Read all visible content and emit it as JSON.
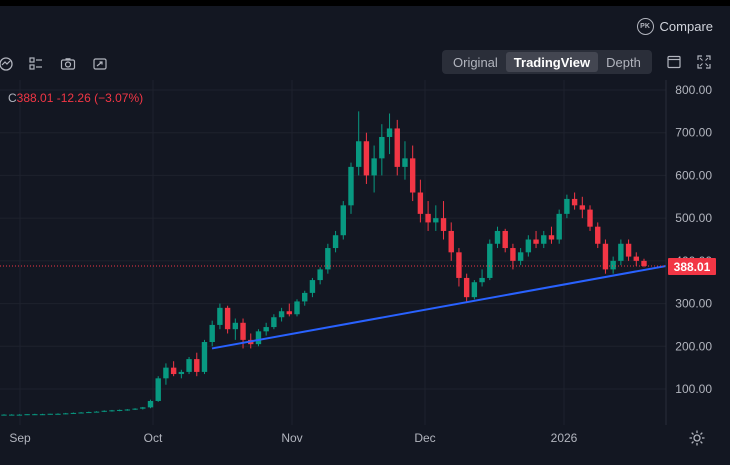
{
  "header": {
    "compare_label": "Compare",
    "compare_badge": "PK"
  },
  "toolbar": {
    "icons": [
      "indicator-icon",
      "layout-icon",
      "camera-icon",
      "share-icon"
    ],
    "view_tabs": [
      {
        "label": "Original",
        "active": false
      },
      {
        "label": "TradingView",
        "active": true
      },
      {
        "label": "Depth",
        "active": false
      }
    ],
    "right_icons": [
      "window-icon",
      "fullscreen-icon"
    ]
  },
  "quote": {
    "prefix": "C",
    "close": "388.01",
    "change": "-12.26",
    "change_pct": "(−3.07%)"
  },
  "price_axis": {
    "labels": [
      "800.00",
      "700.00",
      "600.00",
      "500.00",
      "400.00",
      "300.00",
      "200.00",
      "100.00"
    ],
    "current_price": "388.01",
    "current_price_color": "#f23645"
  },
  "time_axis": {
    "labels": [
      "Sep",
      "Oct",
      "Nov",
      "Dec",
      "2026"
    ]
  },
  "colors": {
    "up": "#089981",
    "down": "#f23645",
    "trendline": "#2962ff",
    "background": "#131722"
  },
  "chart_data": {
    "type": "candlestick",
    "ylim": [
      20,
      820
    ],
    "trendline": [
      [
        195,
        365
      ],
      [
        388,
        388
      ]
    ],
    "current_price": 388.01,
    "candles": [
      [
        40,
        41,
        39,
        40
      ],
      [
        40,
        41,
        39,
        40
      ],
      [
        40,
        41,
        39,
        40
      ],
      [
        40,
        41,
        39,
        41
      ],
      [
        41,
        42,
        40,
        41
      ],
      [
        41,
        42,
        40,
        41
      ],
      [
        41,
        42,
        40,
        42
      ],
      [
        42,
        43,
        41,
        42
      ],
      [
        42,
        44,
        41,
        43
      ],
      [
        43,
        45,
        42,
        44
      ],
      [
        44,
        46,
        43,
        45
      ],
      [
        45,
        47,
        44,
        46
      ],
      [
        46,
        48,
        45,
        47
      ],
      [
        47,
        50,
        46,
        49
      ],
      [
        49,
        51,
        47,
        50
      ],
      [
        50,
        52,
        48,
        51
      ],
      [
        51,
        53,
        49,
        52
      ],
      [
        52,
        55,
        51,
        54
      ],
      [
        54,
        58,
        52,
        57
      ],
      [
        57,
        75,
        55,
        72
      ],
      [
        72,
        130,
        70,
        125
      ],
      [
        125,
        160,
        110,
        150
      ],
      [
        150,
        165,
        130,
        135
      ],
      [
        135,
        145,
        125,
        140
      ],
      [
        140,
        175,
        135,
        170
      ],
      [
        170,
        185,
        130,
        140
      ],
      [
        140,
        215,
        135,
        210
      ],
      [
        210,
        260,
        200,
        250
      ],
      [
        250,
        300,
        240,
        290
      ],
      [
        290,
        295,
        230,
        240
      ],
      [
        240,
        265,
        215,
        255
      ],
      [
        255,
        265,
        195,
        215
      ],
      [
        215,
        230,
        195,
        205
      ],
      [
        205,
        240,
        200,
        235
      ],
      [
        235,
        255,
        225,
        245
      ],
      [
        245,
        275,
        240,
        268
      ],
      [
        268,
        290,
        258,
        282
      ],
      [
        282,
        300,
        270,
        275
      ],
      [
        275,
        310,
        270,
        305
      ],
      [
        305,
        330,
        295,
        325
      ],
      [
        325,
        360,
        315,
        355
      ],
      [
        355,
        385,
        345,
        380
      ],
      [
        380,
        440,
        370,
        430
      ],
      [
        430,
        470,
        420,
        460
      ],
      [
        460,
        540,
        450,
        530
      ],
      [
        530,
        630,
        510,
        620
      ],
      [
        620,
        750,
        600,
        680
      ],
      [
        680,
        700,
        580,
        600
      ],
      [
        600,
        670,
        560,
        640
      ],
      [
        640,
        720,
        600,
        690
      ],
      [
        690,
        745,
        650,
        710
      ],
      [
        710,
        730,
        600,
        620
      ],
      [
        620,
        680,
        590,
        640
      ],
      [
        640,
        670,
        540,
        560
      ],
      [
        560,
        590,
        490,
        510
      ],
      [
        510,
        540,
        470,
        490
      ],
      [
        490,
        530,
        470,
        500
      ],
      [
        500,
        540,
        450,
        470
      ],
      [
        470,
        490,
        400,
        420
      ],
      [
        420,
        430,
        340,
        360
      ],
      [
        360,
        370,
        305,
        315
      ],
      [
        315,
        355,
        310,
        350
      ],
      [
        350,
        380,
        340,
        360
      ],
      [
        360,
        450,
        355,
        440
      ],
      [
        440,
        480,
        430,
        470
      ],
      [
        470,
        475,
        420,
        430
      ],
      [
        430,
        440,
        380,
        400
      ],
      [
        400,
        430,
        390,
        420
      ],
      [
        420,
        460,
        410,
        450
      ],
      [
        450,
        470,
        430,
        440
      ],
      [
        440,
        470,
        430,
        460
      ],
      [
        460,
        480,
        440,
        450
      ],
      [
        450,
        520,
        440,
        510
      ],
      [
        510,
        555,
        500,
        545
      ],
      [
        545,
        560,
        520,
        530
      ],
      [
        530,
        550,
        500,
        520
      ],
      [
        520,
        530,
        470,
        480
      ],
      [
        480,
        490,
        430,
        440
      ],
      [
        440,
        450,
        370,
        380
      ],
      [
        380,
        410,
        370,
        400
      ],
      [
        400,
        450,
        390,
        440
      ],
      [
        440,
        450,
        400,
        410
      ],
      [
        410,
        420,
        388,
        400
      ],
      [
        400,
        405,
        385,
        388
      ]
    ]
  }
}
